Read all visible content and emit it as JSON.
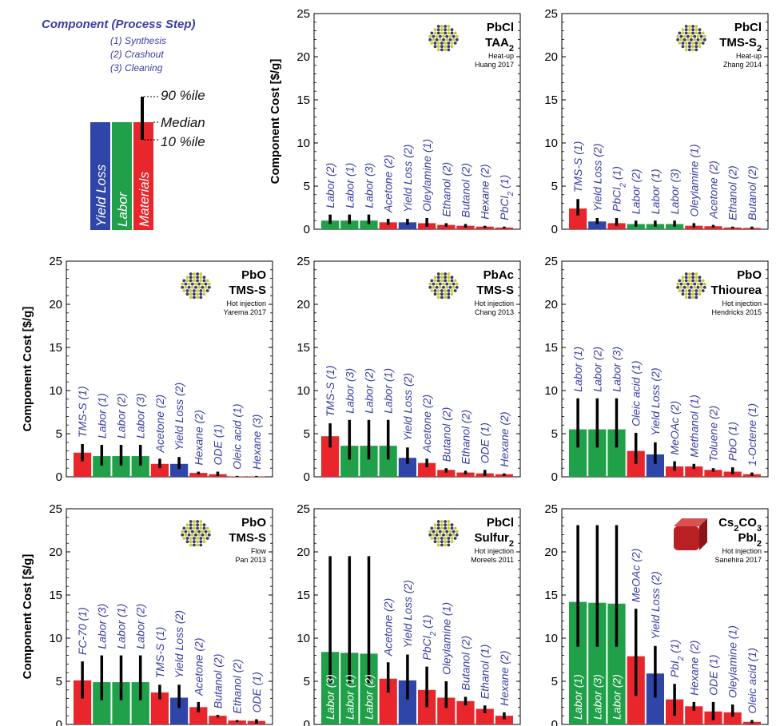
{
  "legend": {
    "title": "Component (Process Step)",
    "steps": [
      "(1) Synthesis",
      "(2) Crashout",
      "(3) Cleaning"
    ],
    "markers": {
      "p90": "90 %ile",
      "median": "Median",
      "p10": "10 %ile"
    },
    "categories": [
      {
        "label": "Yield Loss",
        "color": "#2f45a8"
      },
      {
        "label": "Labor",
        "color": "#1fa049"
      },
      {
        "label": "Materials",
        "color": "#e8262c"
      }
    ]
  },
  "colors": {
    "Materials": "#e8262c",
    "Labor": "#1fa049",
    "Yield Loss": "#2f45a8",
    "label_blue": "#3a3da3",
    "error_bar": "#000000"
  },
  "chart_data": [
    {
      "type": "bar",
      "title": "PbCl2 TAA",
      "title_lines": [
        "PbCl",
        "TAA"
      ],
      "method": "Heat-up",
      "reference": "Huang 2017",
      "ylabel": "Component Cost [$/g]",
      "ylim": [
        0,
        25
      ],
      "yticks": [
        0,
        5,
        10,
        15,
        20,
        25
      ],
      "icon": "dot-cluster-nanocrystal-icon",
      "categories": [
        "Labor (2)",
        "Labor (1)",
        "Labor (3)",
        "Acetone (2)",
        "Yield Loss (2)",
        "Oleylamine (1)",
        "Ethanol (2)",
        "Butanol (2)",
        "Hexane (2)",
        "PbCl2 (1)"
      ],
      "groups": [
        "Labor",
        "Labor",
        "Labor",
        "Materials",
        "Yield Loss",
        "Materials",
        "Materials",
        "Materials",
        "Materials",
        "Materials"
      ],
      "values": [
        1.0,
        1.0,
        1.0,
        0.8,
        0.8,
        0.7,
        0.5,
        0.4,
        0.3,
        0.2
      ],
      "p10": [
        0.6,
        0.6,
        0.6,
        0.5,
        0.5,
        0.3,
        0.3,
        0.2,
        0.15,
        0.1
      ],
      "p90": [
        1.7,
        1.7,
        1.7,
        1.2,
        1.2,
        1.3,
        0.7,
        0.6,
        0.4,
        0.3
      ]
    },
    {
      "type": "bar",
      "title": "PbCl2 TMS-S",
      "title_lines": [
        "PbCl",
        "TMS-S"
      ],
      "method": "Heat-up",
      "reference": "Zhang 2014",
      "ylabel": "",
      "ylim": [
        0,
        25
      ],
      "yticks": [
        0,
        5,
        10,
        15,
        20,
        25
      ],
      "icon": "dot-cluster-nanocrystal-icon",
      "categories": [
        "TMS-S (1)",
        "Yield Loss (2)",
        "PbCl2 (1)",
        "Labor (2)",
        "Labor (1)",
        "Labor (3)",
        "Oleylamine (1)",
        "Acetone (2)",
        "Ethanol (2)",
        "Butanol (2)"
      ],
      "groups": [
        "Materials",
        "Yield Loss",
        "Materials",
        "Labor",
        "Labor",
        "Labor",
        "Materials",
        "Materials",
        "Materials",
        "Materials"
      ],
      "values": [
        2.4,
        0.9,
        0.7,
        0.6,
        0.6,
        0.6,
        0.4,
        0.35,
        0.2,
        0.15
      ],
      "p10": [
        1.6,
        0.6,
        0.4,
        0.3,
        0.3,
        0.3,
        0.2,
        0.2,
        0.1,
        0.05
      ],
      "p90": [
        3.5,
        1.3,
        1.3,
        1.0,
        1.0,
        1.0,
        0.7,
        0.5,
        0.3,
        0.3
      ]
    },
    {
      "type": "bar",
      "title": "PbO TMS-S",
      "title_lines": [
        "PbO",
        "TMS-S"
      ],
      "method": "Hot injection",
      "reference": "Yarema 2017",
      "ylabel": "Component Cost [$/g]",
      "ylim": [
        0,
        25
      ],
      "yticks": [
        0,
        5,
        10,
        15,
        20,
        25
      ],
      "icon": "dot-cluster-nanocrystal-icon",
      "categories": [
        "TMS-S (1)",
        "Labor (1)",
        "Labor (2)",
        "Labor (3)",
        "Acetone (2)",
        "Yield Loss (2)",
        "Hexane (2)",
        "ODE (1)",
        "Oleic acid (1)",
        "Hexane (3)"
      ],
      "groups": [
        "Materials",
        "Labor",
        "Labor",
        "Labor",
        "Materials",
        "Yield Loss",
        "Materials",
        "Materials",
        "Materials",
        "Materials"
      ],
      "values": [
        2.8,
        2.4,
        2.4,
        2.4,
        1.5,
        1.5,
        0.45,
        0.3,
        0.05,
        0.05
      ],
      "p10": [
        1.8,
        1.3,
        1.3,
        1.3,
        1.0,
        0.9,
        0.3,
        0.1,
        0.0,
        0.0
      ],
      "p90": [
        3.8,
        3.7,
        3.7,
        3.7,
        2.1,
        2.3,
        0.6,
        0.6,
        0.1,
        0.1
      ]
    },
    {
      "type": "bar",
      "title": "PbAc TMS-S",
      "title_lines": [
        "PbAc",
        "TMS-S"
      ],
      "method": "Hot injection",
      "reference": "Chang 2013",
      "ylabel": "",
      "ylim": [
        0,
        25
      ],
      "yticks": [
        0,
        5,
        10,
        15,
        20,
        25
      ],
      "icon": "dot-cluster-nanocrystal-icon",
      "categories": [
        "TMS-S (1)",
        "Labor (3)",
        "Labor (2)",
        "Labor (1)",
        "Yield Loss (2)",
        "Acetone (2)",
        "Butanol (2)",
        "Ethanol (2)",
        "ODE (1)",
        "Hexane (2)"
      ],
      "groups": [
        "Materials",
        "Labor",
        "Labor",
        "Labor",
        "Yield Loss",
        "Materials",
        "Materials",
        "Materials",
        "Materials",
        "Materials"
      ],
      "values": [
        4.7,
        3.6,
        3.6,
        3.6,
        2.2,
        1.6,
        0.8,
        0.5,
        0.4,
        0.3
      ],
      "p10": [
        3.4,
        2.0,
        2.0,
        2.0,
        1.5,
        1.1,
        0.5,
        0.3,
        0.1,
        0.1
      ],
      "p90": [
        6.2,
        6.6,
        6.6,
        6.6,
        3.4,
        2.1,
        1.0,
        0.7,
        0.8,
        0.4
      ]
    },
    {
      "type": "bar",
      "title": "PbO Thiourea",
      "title_lines": [
        "PbO",
        "Thiourea"
      ],
      "method": "Hot injection",
      "reference": "Hendricks 2015",
      "ylabel": "",
      "ylim": [
        0,
        25
      ],
      "yticks": [
        0,
        5,
        10,
        15,
        20,
        25
      ],
      "icon": "dot-cluster-nanocrystal-icon",
      "categories": [
        "Labor (1)",
        "Labor (2)",
        "Labor (3)",
        "Oleic acid (1)",
        "Yield Loss (2)",
        "MeOAc (2)",
        "Methanol (1)",
        "Toluene (2)",
        "PbO (1)",
        "1-Octene (1)"
      ],
      "groups": [
        "Labor",
        "Labor",
        "Labor",
        "Materials",
        "Yield Loss",
        "Materials",
        "Materials",
        "Materials",
        "Materials",
        "Materials"
      ],
      "values": [
        5.5,
        5.5,
        5.5,
        3.0,
        2.6,
        1.2,
        1.2,
        0.8,
        0.6,
        0.3
      ],
      "p10": [
        3.4,
        3.4,
        3.4,
        1.5,
        1.5,
        0.7,
        0.9,
        0.6,
        0.3,
        0.1
      ],
      "p90": [
        9.1,
        9.1,
        9.1,
        5.1,
        4.0,
        1.8,
        1.5,
        1.0,
        1.1,
        0.5
      ]
    },
    {
      "type": "bar",
      "title": "PbO TMS-S",
      "title_lines": [
        "PbO",
        "TMS-S"
      ],
      "method": "Flow",
      "reference": "Pan 2013",
      "ylabel": "Component Cost [$/g]",
      "ylim": [
        0,
        25
      ],
      "yticks": [
        0,
        5,
        10,
        15,
        20,
        25
      ],
      "icon": "dot-cluster-nanocrystal-icon",
      "categories": [
        "FC-70 (1)",
        "Labor (3)",
        "Labor (1)",
        "Labor (2)",
        "TMS-S (1)",
        "Yield Loss (2)",
        "Acetone (2)",
        "Butanol (2)",
        "Ethanol (2)",
        "ODE (1)"
      ],
      "groups": [
        "Materials",
        "Labor",
        "Labor",
        "Labor",
        "Materials",
        "Yield Loss",
        "Materials",
        "Materials",
        "Materials",
        "Materials"
      ],
      "values": [
        5.1,
        4.9,
        4.9,
        4.9,
        3.7,
        3.1,
        2.0,
        1.0,
        0.45,
        0.4
      ],
      "p10": [
        3.0,
        2.8,
        2.8,
        2.8,
        2.9,
        1.9,
        1.4,
        0.8,
        0.3,
        0.1
      ],
      "p90": [
        7.3,
        8.0,
        8.0,
        8.0,
        4.6,
        4.6,
        2.6,
        1.1,
        0.5,
        0.6
      ]
    },
    {
      "type": "bar",
      "title": "PbCl2 Sulfur",
      "title_lines": [
        "PbCl",
        "Sulfur"
      ],
      "method": "Hot injection",
      "reference": "Moreels 2011",
      "ylabel": "",
      "ylim": [
        0,
        25
      ],
      "yticks": [
        0,
        5,
        10,
        15,
        20,
        25
      ],
      "icon": "dot-cluster-nanocrystal-icon",
      "categories": [
        "Labor (3)",
        "Labor (1)",
        "Labor (2)",
        "Acetone (2)",
        "Yield Loss (2)",
        "PbCl2 (1)",
        "Oleylamine (1)",
        "Butanol (2)",
        "Ethanol (1)",
        "Hexane (2)"
      ],
      "groups": [
        "Labor",
        "Labor",
        "Labor",
        "Materials",
        "Yield Loss",
        "Materials",
        "Materials",
        "Materials",
        "Materials",
        "Materials"
      ],
      "values": [
        8.4,
        8.3,
        8.2,
        5.3,
        5.1,
        4.0,
        3.1,
        2.7,
        1.8,
        1.0
      ],
      "p10": [
        4.8,
        4.8,
        4.8,
        3.7,
        2.9,
        2.0,
        1.9,
        2.2,
        1.3,
        0.6
      ],
      "p90": [
        19.5,
        19.5,
        19.5,
        7.2,
        8.1,
        6.7,
        5.0,
        3.2,
        2.2,
        1.4
      ]
    },
    {
      "type": "bar",
      "title": "Cs2CO3 PbI2",
      "title_lines": [
        "Cs",
        "PbI"
      ],
      "method": "Hot injection",
      "reference": "Sanehira 2017",
      "ylabel": "",
      "ylim": [
        0,
        25
      ],
      "yticks": [
        0,
        5,
        10,
        15,
        20,
        25
      ],
      "icon": "red-cube-nanocrystal-icon",
      "categories": [
        "Labor (1)",
        "Labor (3)",
        "Labor (2)",
        "MeOAc (2)",
        "Yield Loss (2)",
        "PbI2 (1)",
        "Hexane (2)",
        "ODE (1)",
        "Oleylamine (1)",
        "Oleic acid (1)"
      ],
      "groups": [
        "Labor",
        "Labor",
        "Labor",
        "Materials",
        "Yield Loss",
        "Materials",
        "Materials",
        "Materials",
        "Materials",
        "Materials"
      ],
      "values": [
        14.2,
        14.1,
        14.0,
        7.9,
        5.9,
        2.9,
        2.1,
        1.5,
        1.4,
        0.3
      ],
      "p10": [
        9.0,
        9.0,
        9.0,
        3.3,
        3.1,
        1.0,
        1.6,
        0.5,
        0.9,
        0.1
      ],
      "p90": [
        23.1,
        23.1,
        23.1,
        13.4,
        9.1,
        4.7,
        2.6,
        2.6,
        2.3,
        0.5
      ]
    }
  ]
}
